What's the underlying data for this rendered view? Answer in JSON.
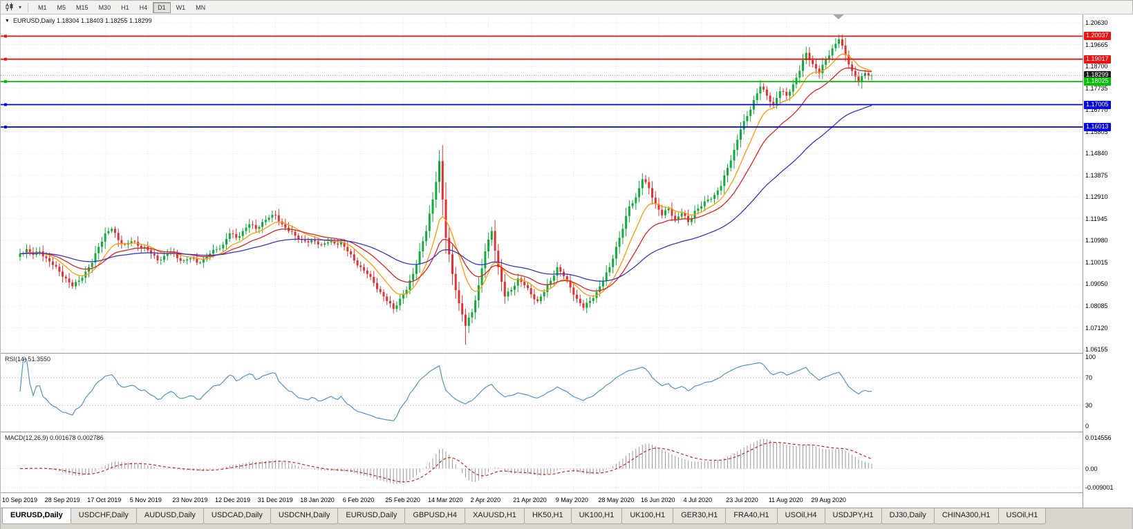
{
  "toolbar": {
    "timeframes": [
      "M1",
      "M5",
      "M15",
      "M30",
      "H1",
      "H4",
      "D1",
      "W1",
      "MN"
    ],
    "active_timeframe": "D1",
    "chart_type_icon": "candlestick-chart"
  },
  "chart": {
    "symbol": "EURUSD,Daily",
    "symbol_line": "EURUSD,Daily 1.18304 1.18403 1.18255 1.18299",
    "ohlc": {
      "open": "1.18304",
      "high": "1.18403",
      "low": "1.18255",
      "close": "1.18299"
    }
  },
  "axis": {
    "price_ticks": [
      "1.20630",
      "1.19665",
      "1.18700",
      "1.17735",
      "1.16770",
      "1.15805",
      "1.14840",
      "1.13875",
      "1.12910",
      "1.11945",
      "1.10980",
      "1.10015",
      "1.09050",
      "1.08085",
      "1.07120",
      "1.06155"
    ],
    "rsi_ticks": [
      "100",
      "70",
      "30",
      "0"
    ],
    "macd_ticks": [
      "0.014556",
      "0.00",
      "-0.009001"
    ]
  },
  "levels": [
    {
      "label": "1.20037",
      "price": 1.20037,
      "color": "#ee1111",
      "kind": "resistance"
    },
    {
      "label": "1.19017",
      "price": 1.19017,
      "color": "#ee1111",
      "kind": "resistance"
    },
    {
      "label": "1.18299",
      "price": 1.18299,
      "color": "#1a1a1a",
      "kind": "current-price"
    },
    {
      "label": "1.18025",
      "price": 1.18025,
      "color": "#00c000",
      "kind": "support"
    },
    {
      "label": "1.17005",
      "price": 1.17005,
      "color": "#0000e6",
      "kind": "support"
    },
    {
      "label": "1.16013",
      "price": 1.16013,
      "color": "#0000e6",
      "kind": "support"
    }
  ],
  "indicators": {
    "rsi": {
      "label": "RSI(14) 51.3550",
      "period": 14,
      "value": 51.355,
      "levels": [
        70,
        30
      ]
    },
    "macd": {
      "label": "MACD(12,26,9) 0.001678 0.002786",
      "params": "12,26,9",
      "macd": 0.001678,
      "signal": 0.002786
    }
  },
  "time_axis": [
    "10 Sep 2019",
    "28 Sep 2019",
    "17 Oct 2019",
    "5 Nov 2019",
    "23 Nov 2019",
    "12 Dec 2019",
    "31 Dec 2019",
    "18 Jan 2020",
    "6 Feb 2020",
    "25 Feb 2020",
    "14 Mar 2020",
    "2 Apr 2020",
    "21 Apr 2020",
    "9 May 2020",
    "28 May 2020",
    "16 Jun 2020",
    "4 Jul 2020",
    "23 Jul 2020",
    "11 Aug 2020",
    "29 Aug 2020"
  ],
  "tabs": {
    "active_index": 0,
    "items": [
      "EURUSD,Daily",
      "USDCHF,Daily",
      "AUDUSD,Daily",
      "USDCAD,Daily",
      "USDCNH,Daily",
      "EURUSD,Daily",
      "GBPUSD,H4",
      "XAUUSD,H1",
      "HK50,H1",
      "UK100,H1",
      "UK100,H1",
      "GER30,H1",
      "FRA40,H1",
      "USOil,H4",
      "USDJPY,H1",
      "DJ30,Daily",
      "CHINA300,H1",
      "USOil,H1"
    ],
    "active": "EURUSD,Daily"
  },
  "colors": {
    "bull": "#11ad3c",
    "bear": "#e03232",
    "ma_fast": "#ff9a00",
    "ma_mid": "#e82020",
    "ma_slow": "#3535cf",
    "rsi": "#4f94cd",
    "macd_hist": "#9a9a9a",
    "macd_signal": "#d42020",
    "grid": "#e4e4e4",
    "current_price_line": "#999999"
  },
  "chart_data": {
    "type": "candlestick",
    "symbol": "EURUSD",
    "timeframe": "Daily",
    "title": "EURUSD,Daily",
    "x_labels": [
      "10 Sep 2019",
      "28 Sep 2019",
      "17 Oct 2019",
      "5 Nov 2019",
      "23 Nov 2019",
      "12 Dec 2019",
      "31 Dec 2019",
      "18 Jan 2020",
      "6 Feb 2020",
      "25 Feb 2020",
      "14 Mar 2020",
      "2 Apr 2020",
      "21 Apr 2020",
      "9 May 2020",
      "28 May 2020",
      "16 Jun 2020",
      "4 Jul 2020",
      "23 Jul 2020",
      "11 Aug 2020",
      "29 Aug 2020"
    ],
    "price_range": {
      "top": 1.2063,
      "bottom": 1.06155
    },
    "last_close": 1.18299,
    "extremes": {
      "high": 1.2011,
      "low": 1.0637
    },
    "close_samples": [
      1.104,
      1.106,
      1.1035,
      1.105,
      1.102,
      1.099,
      1.096,
      1.093,
      1.0895,
      1.092,
      1.096,
      1.1,
      1.107,
      1.113,
      1.115,
      1.11,
      1.108,
      1.1095,
      1.1075,
      1.107,
      1.104,
      1.101,
      1.103,
      1.105,
      1.102,
      1.101,
      1.102,
      1.1,
      1.1015,
      1.104,
      1.106,
      1.108,
      1.113,
      1.111,
      1.114,
      1.117,
      1.115,
      1.118,
      1.12,
      1.121,
      1.117,
      1.114,
      1.112,
      1.11,
      1.109,
      1.1095,
      1.108,
      1.109,
      1.1085,
      1.109,
      1.105,
      1.101,
      1.098,
      1.095,
      1.091,
      1.087,
      1.083,
      1.0795,
      1.084,
      1.088,
      1.095,
      1.105,
      1.114,
      1.128,
      1.145,
      1.111,
      1.095,
      1.082,
      1.072,
      1.078,
      1.09,
      1.105,
      1.114,
      1.098,
      1.085,
      1.088,
      1.093,
      1.09,
      1.086,
      1.083,
      1.087,
      1.092,
      1.098,
      1.094,
      1.089,
      1.084,
      1.08,
      1.083,
      1.087,
      1.092,
      1.098,
      1.107,
      1.115,
      1.125,
      1.129,
      1.137,
      1.133,
      1.126,
      1.121,
      1.124,
      1.119,
      1.122,
      1.118,
      1.123,
      1.125,
      1.128,
      1.13,
      1.134,
      1.142,
      1.15,
      1.159,
      1.165,
      1.172,
      1.178,
      1.174,
      1.17,
      1.176,
      1.174,
      1.179,
      1.185,
      1.193,
      1.188,
      1.184,
      1.19,
      1.195,
      1.199,
      1.192,
      1.185,
      1.18,
      1.184,
      1.18299
    ],
    "overlays": [
      {
        "name": "ma-fast",
        "type": "ema",
        "period": 10,
        "color": "#ff9a00"
      },
      {
        "name": "ma-mid",
        "type": "ema",
        "period": 21,
        "color": "#e82020"
      },
      {
        "name": "ma-slow",
        "type": "ema",
        "period": 55,
        "color": "#3535cf"
      }
    ],
    "horizontal_lines": [
      1.20037,
      1.19017,
      1.18025,
      1.17005,
      1.16013
    ],
    "sub_panels": [
      {
        "name": "RSI",
        "params": "14",
        "current": 51.355,
        "range": [
          0,
          100
        ],
        "guides": [
          70,
          30
        ]
      },
      {
        "name": "MACD",
        "params": "12,26,9",
        "macd": 0.001678,
        "signal": 0.002786,
        "range": [
          -0.009001,
          0.014556
        ]
      }
    ]
  }
}
